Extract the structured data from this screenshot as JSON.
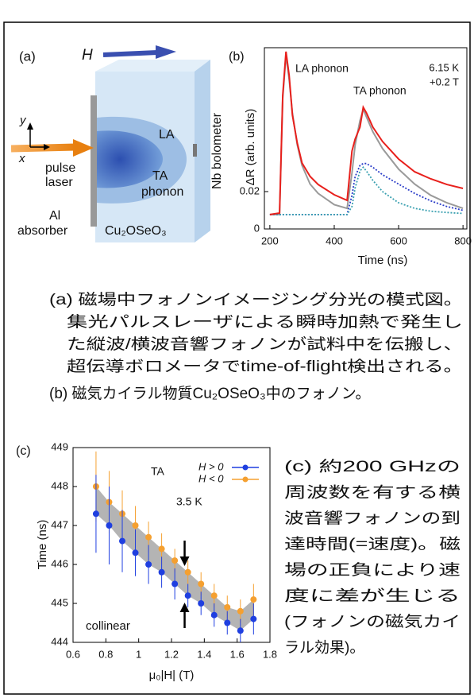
{
  "diagram": {
    "label": "(a)",
    "field": "H",
    "axis_y": "y",
    "axis_x": "x",
    "laser": [
      "pulse",
      "laser"
    ],
    "la": "LA",
    "ta": [
      "TA",
      "phonon"
    ],
    "bolometer": "Nb bolometer",
    "absorber": [
      "Al",
      "absorber"
    ],
    "sample": "Cu₂OSeO₃"
  },
  "chart_data": [
    {
      "type": "line",
      "label": "(b)",
      "xlabel": "Time (ns)",
      "ylabel": "ΔR (arb. units)",
      "annotations": [
        "LA phonon",
        "TA phonon",
        "6.15 K",
        "+0.2 T"
      ],
      "x": [
        200,
        230,
        240,
        250,
        260,
        270,
        285,
        300,
        325,
        350,
        400,
        440,
        455,
        465,
        480,
        490,
        500,
        520,
        550,
        600,
        650,
        700,
        750,
        800
      ],
      "series": [
        {
          "color": "#9a9a9a",
          "style": "solid",
          "values": [
            0.0077,
            0.0077,
            0.07,
            0.093,
            0.08,
            0.062,
            0.045,
            0.034,
            0.024,
            0.019,
            0.013,
            0.011,
            0.03,
            0.045,
            0.058,
            0.064,
            0.06,
            0.052,
            0.043,
            0.032,
            0.024,
            0.018,
            0.014,
            0.011
          ]
        },
        {
          "color": "#2a3cc8",
          "style": "dotted",
          "values": [
            0.0077,
            0.0077,
            0.0077,
            0.0077,
            0.0077,
            0.0077,
            0.0077,
            0.0077,
            0.0077,
            0.0077,
            0.0077,
            0.0077,
            0.018,
            0.028,
            0.034,
            0.035,
            0.035,
            0.033,
            0.029,
            0.024,
            0.019,
            0.015,
            0.012,
            0.01
          ]
        },
        {
          "color": "#3aa0b0",
          "style": "dotted",
          "values": [
            0.0077,
            0.0077,
            0.0077,
            0.0077,
            0.0077,
            0.0077,
            0.0077,
            0.0077,
            0.0077,
            0.0077,
            0.0077,
            0.0077,
            0.012,
            0.022,
            0.031,
            0.033,
            0.031,
            0.026,
            0.02,
            0.014,
            0.011,
            0.0095,
            0.0088,
            0.0083
          ]
        },
        {
          "color": "#e8201c",
          "style": "solid",
          "values": [
            0.0077,
            0.0085,
            0.0715,
            0.0949,
            0.0821,
            0.0609,
            0.046,
            0.0353,
            0.0281,
            0.0238,
            0.0183,
            0.0153,
            0.0417,
            0.0481,
            0.0545,
            0.0651,
            0.0621,
            0.0545,
            0.0468,
            0.0374,
            0.0306,
            0.0268,
            0.0238,
            0.0217
          ]
        }
      ],
      "xlim": [
        183,
        812
      ],
      "xticks": [
        200,
        400,
        600,
        800
      ],
      "ylim": [
        0,
        0.097
      ],
      "yticks": [
        0,
        0.02
      ]
    },
    {
      "type": "scatter",
      "label": "(c)",
      "xlabel": "μ₀|H| (T)",
      "ylabel": "Time (ns)",
      "annotations": [
        "TA",
        "3.5 K",
        "collinear"
      ],
      "x": [
        0.74,
        0.82,
        0.9,
        0.98,
        1.06,
        1.14,
        1.22,
        1.3,
        1.38,
        1.46,
        1.54,
        1.62,
        1.7
      ],
      "series": [
        {
          "name": "H > 0",
          "color": "#1f3fe0",
          "values": [
            447.3,
            447.0,
            446.6,
            446.3,
            446.0,
            445.8,
            445.5,
            445.2,
            445.0,
            444.7,
            444.5,
            444.3,
            444.6
          ],
          "errors": [
            1.0,
            1.0,
            0.8,
            0.6,
            0.5,
            0.4,
            0.4,
            0.3,
            0.3,
            0.3,
            0.3,
            0.3,
            0.4
          ]
        },
        {
          "name": "H < 0",
          "color": "#f5a030",
          "values": [
            448.0,
            447.6,
            447.3,
            447.0,
            446.7,
            446.4,
            446.1,
            445.8,
            445.5,
            445.2,
            444.9,
            444.8,
            445.1
          ],
          "errors": [
            0.9,
            0.8,
            0.6,
            0.5,
            0.4,
            0.4,
            0.3,
            0.3,
            0.3,
            0.3,
            0.3,
            0.3,
            0.4
          ]
        }
      ],
      "xlim": [
        0.6,
        1.8
      ],
      "xticks": [
        0.6,
        0.8,
        1,
        1.2,
        1.4,
        1.6,
        1.8
      ],
      "ylim": [
        444,
        449
      ],
      "yticks": [
        444,
        445,
        446,
        447,
        448,
        449
      ]
    }
  ],
  "captions": {
    "ab": [
      "(a) 磁場中フォノンイメージング分光の模式図。",
      "集光パルスレーザによる瞬時加熱で発生し",
      "た縦波/横波音響フォノンが試料中を伝搬し、",
      "超伝導ボロメータでtime-of-flight検出される。",
      "(b) 磁気カイラル物質Cu₂OSeO₃中のフォノン。"
    ],
    "c": [
      "(c) 約200 GHzの",
      "周波数を有する横",
      "波音響フォノンの到",
      "達時間(=速度)。磁",
      "場の正負により速",
      "度に差が生じる",
      "(フォノンの磁気カイ",
      "ラル効果)。"
    ]
  }
}
